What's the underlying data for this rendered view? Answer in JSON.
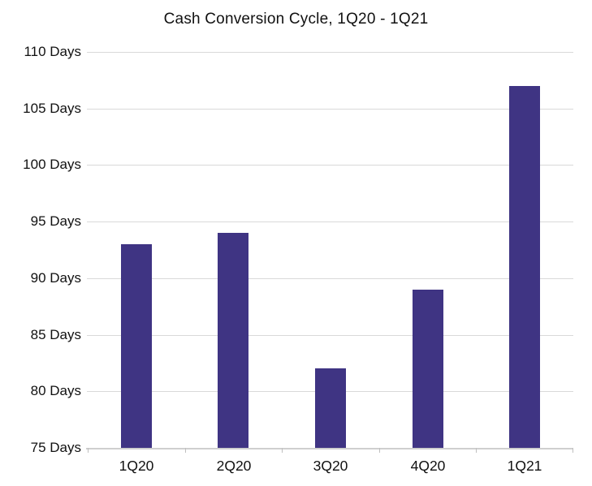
{
  "chart_data": {
    "type": "bar",
    "title": "Cash Conversion Cycle, 1Q20 - 1Q21",
    "categories": [
      "1Q20",
      "2Q20",
      "3Q20",
      "4Q20",
      "1Q21"
    ],
    "values": [
      93,
      94,
      82,
      89,
      107
    ],
    "value_unit": "Days",
    "xlabel": "",
    "ylabel": "",
    "ylim": [
      75,
      110
    ],
    "ytick_step": 5,
    "ytick_labels": [
      "110 Days",
      "105 Days",
      "100 Days",
      "95 Days",
      "90 Days",
      "85 Days",
      "80 Days",
      "75 Days"
    ],
    "grid": true,
    "legend": "none",
    "colors": {
      "bar": "#3f3483",
      "gridline": "#d9d9d9",
      "axis_line": "#cfcfcf",
      "tick": "#bfbfbf",
      "text": "#111111",
      "background": "#ffffff"
    }
  }
}
